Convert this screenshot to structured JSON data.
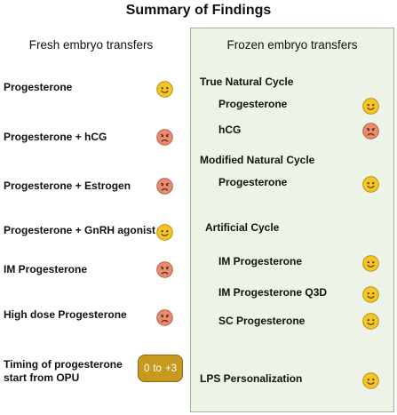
{
  "title": "Summary of Findings",
  "fresh": {
    "heading": "Fresh embryo transfers",
    "items": [
      {
        "label": "Progesterone",
        "face": "happy"
      },
      {
        "label": "Progesterone + hCG",
        "face": "sad"
      },
      {
        "label": "Progesterone + Estrogen",
        "face": "sad"
      },
      {
        "label": "Progesterone + GnRH agonist",
        "face": "happy"
      },
      {
        "label": "IM Progesterone",
        "face": "sad"
      },
      {
        "label": "High dose Progesterone",
        "face": "sad"
      }
    ],
    "timing": {
      "label_line1": "Timing of progesterone",
      "label_line2": "start from OPU",
      "range_from": "0",
      "range_to_word": "to",
      "range_to": "+3"
    }
  },
  "frozen": {
    "heading": "Frozen embryo transfers",
    "true_natural": {
      "title": "True Natural Cycle",
      "items": [
        {
          "label": "Progesterone",
          "face": "happy"
        },
        {
          "label": "hCG",
          "face": "sad"
        }
      ]
    },
    "modified_natural": {
      "title": "Modified Natural Cycle",
      "items": [
        {
          "label": "Progesterone",
          "face": "happy"
        }
      ]
    },
    "artificial": {
      "title": "Artificial Cycle",
      "items": [
        {
          "label": "IM Progesterone",
          "face": "happy"
        },
        {
          "label": "IM Progesterone Q3D",
          "face": "happy"
        },
        {
          "label": "SC Progesterone",
          "face": "happy"
        }
      ]
    },
    "lps": {
      "label": "LPS Personalization",
      "face": "happy"
    }
  },
  "colors": {
    "happy_fill": "#f3c623",
    "sad_fill": "#ea8a6e",
    "badge": "#c79a1f",
    "panel_bg": "#eef3e7",
    "panel_border": "#9fb58e"
  }
}
